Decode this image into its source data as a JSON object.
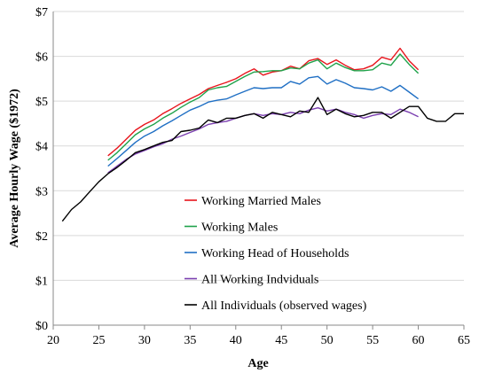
{
  "chart_data": {
    "type": "line",
    "title": "",
    "xlabel": "Age",
    "ylabel": "Average Hourly Wage ($1972)",
    "xlim": [
      20,
      65
    ],
    "ylim": [
      0,
      7
    ],
    "x_ticks": [
      20,
      25,
      30,
      35,
      40,
      45,
      50,
      55,
      60,
      65
    ],
    "y_ticks": [
      0,
      1,
      2,
      3,
      4,
      5,
      6,
      7
    ],
    "y_tick_labels": [
      "$0",
      "$1",
      "$2",
      "$3",
      "$4",
      "$5",
      "$6",
      "$7"
    ],
    "grid": "horizontal",
    "legend_position": "bottom-left-inside",
    "series": [
      {
        "name": "Working Married Males",
        "color": "#e8141c",
        "x": [
          26,
          27,
          28,
          29,
          30,
          31,
          32,
          33,
          34,
          35,
          36,
          37,
          38,
          39,
          40,
          41,
          42,
          43,
          44,
          45,
          46,
          47,
          48,
          49,
          50,
          51,
          52,
          53,
          54,
          55,
          56,
          57,
          58,
          59,
          60
        ],
        "y": [
          3.78,
          3.95,
          4.15,
          4.35,
          4.48,
          4.58,
          4.72,
          4.83,
          4.95,
          5.05,
          5.15,
          5.28,
          5.35,
          5.42,
          5.5,
          5.62,
          5.72,
          5.58,
          5.65,
          5.68,
          5.78,
          5.72,
          5.9,
          5.95,
          5.82,
          5.92,
          5.8,
          5.7,
          5.72,
          5.8,
          5.98,
          5.92,
          6.18,
          5.9,
          5.7
        ]
      },
      {
        "name": "Working Males",
        "color": "#1fa24a",
        "x": [
          26,
          27,
          28,
          29,
          30,
          31,
          32,
          33,
          34,
          35,
          36,
          37,
          38,
          39,
          40,
          41,
          42,
          43,
          44,
          45,
          46,
          47,
          48,
          49,
          50,
          51,
          52,
          53,
          54,
          55,
          56,
          57,
          58,
          59,
          60
        ],
        "y": [
          3.68,
          3.85,
          4.05,
          4.25,
          4.38,
          4.48,
          4.62,
          4.73,
          4.86,
          4.98,
          5.08,
          5.25,
          5.3,
          5.33,
          5.44,
          5.55,
          5.65,
          5.66,
          5.68,
          5.68,
          5.74,
          5.72,
          5.85,
          5.92,
          5.72,
          5.85,
          5.75,
          5.68,
          5.68,
          5.7,
          5.85,
          5.8,
          6.05,
          5.82,
          5.62
        ]
      },
      {
        "name": "Working Head of Households",
        "color": "#1f6fc4",
        "x": [
          26,
          27,
          28,
          29,
          30,
          31,
          32,
          33,
          34,
          35,
          36,
          37,
          38,
          39,
          40,
          41,
          42,
          43,
          44,
          45,
          46,
          47,
          48,
          49,
          50,
          51,
          52,
          53,
          54,
          55,
          56,
          57,
          58,
          59,
          60
        ],
        "y": [
          3.55,
          3.72,
          3.9,
          4.08,
          4.22,
          4.32,
          4.45,
          4.56,
          4.68,
          4.8,
          4.88,
          4.98,
          5.02,
          5.05,
          5.14,
          5.22,
          5.3,
          5.28,
          5.3,
          5.3,
          5.44,
          5.38,
          5.52,
          5.55,
          5.38,
          5.48,
          5.4,
          5.3,
          5.28,
          5.25,
          5.32,
          5.22,
          5.35,
          5.2,
          5.05
        ]
      },
      {
        "name": "All Working Indviduals",
        "color": "#7b3fb0",
        "x": [
          26,
          27,
          28,
          29,
          30,
          31,
          32,
          33,
          34,
          35,
          36,
          37,
          38,
          39,
          40,
          41,
          42,
          43,
          44,
          45,
          46,
          47,
          48,
          49,
          50,
          51,
          52,
          53,
          54,
          55,
          56,
          57,
          58,
          59,
          60
        ],
        "y": [
          3.4,
          3.55,
          3.7,
          3.82,
          3.9,
          3.98,
          4.05,
          4.15,
          4.22,
          4.3,
          4.38,
          4.48,
          4.52,
          4.55,
          4.62,
          4.68,
          4.72,
          4.68,
          4.72,
          4.7,
          4.75,
          4.72,
          4.8,
          4.85,
          4.78,
          4.82,
          4.75,
          4.7,
          4.62,
          4.68,
          4.72,
          4.7,
          4.82,
          4.75,
          4.65
        ]
      },
      {
        "name": "All Individuals (observed wages)",
        "color": "#000000",
        "x": [
          21,
          22,
          23,
          24,
          25,
          26,
          27,
          28,
          29,
          30,
          31,
          32,
          33,
          34,
          35,
          36,
          37,
          38,
          39,
          40,
          41,
          42,
          43,
          44,
          45,
          46,
          47,
          48,
          49,
          50,
          51,
          52,
          53,
          54,
          55,
          56,
          57,
          58,
          59,
          60,
          61,
          62,
          63,
          64,
          65
        ],
        "y": [
          2.32,
          2.58,
          2.75,
          2.98,
          3.2,
          3.38,
          3.52,
          3.68,
          3.85,
          3.92,
          4.0,
          4.08,
          4.12,
          4.32,
          4.35,
          4.4,
          4.58,
          4.52,
          4.62,
          4.62,
          4.68,
          4.72,
          4.62,
          4.75,
          4.7,
          4.65,
          4.78,
          4.75,
          5.08,
          4.7,
          4.82,
          4.72,
          4.65,
          4.68,
          4.75,
          4.75,
          4.62,
          4.75,
          4.88,
          4.88,
          4.62,
          4.55,
          4.55,
          4.72,
          4.72
        ]
      }
    ]
  }
}
